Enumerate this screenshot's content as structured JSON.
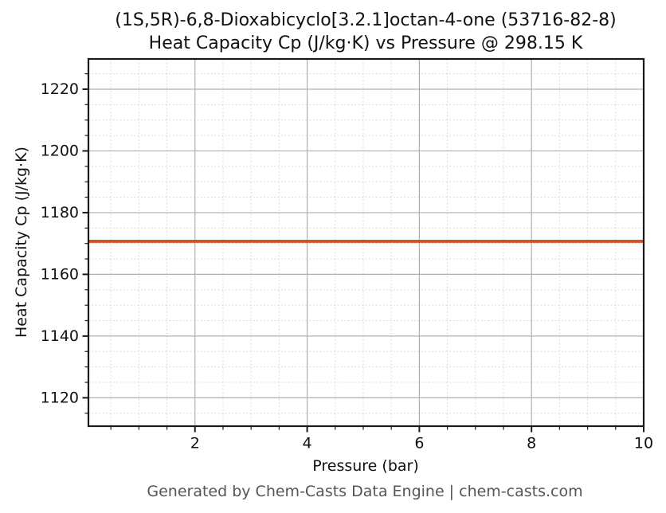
{
  "figure": {
    "title_line1": "(1S,5R)-6,8-Dioxabicyclo[3.2.1]octan-4-one (53716-82-8)",
    "title_line2": "Heat Capacity Cp (J/kg·K) vs Pressure @ 298.15 K",
    "footer": "Generated by Chem-Casts Data Engine | chem-casts.com"
  },
  "chart_data": {
    "type": "line",
    "title": "(1S,5R)-6,8-Dioxabicyclo[3.2.1]octan-4-one (53716-82-8)\nHeat Capacity Cp (J/kg·K) vs Pressure @ 298.15 K",
    "xlabel": "Pressure (bar)",
    "ylabel": "Heat Capacity Cp (J/kg·K)",
    "x": [
      0.1,
      10
    ],
    "series": [
      {
        "name": "Heat Capacity Cp",
        "values": [
          1170.7,
          1170.7
        ]
      }
    ],
    "cp_constant_value": 1170.7,
    "temperature_label": "298.15 K",
    "xlim": [
      0.1,
      10
    ],
    "ylim": [
      1110.8,
      1229.8
    ],
    "x_major_ticks": [
      2,
      4,
      6,
      8,
      10
    ],
    "y_major_ticks": [
      1120,
      1140,
      1160,
      1180,
      1200,
      1220
    ],
    "x_minor_step": 0.5,
    "y_minor_step": 5,
    "grid": true,
    "legend": "none",
    "colors": {
      "line": "#d0521f",
      "grid_major": "#b0b0b0",
      "grid_minor": "#d8d8d8",
      "spine": "#1a1a1a",
      "tick_text": "#111111",
      "footer_text": "#555555",
      "background": "#ffffff"
    }
  }
}
